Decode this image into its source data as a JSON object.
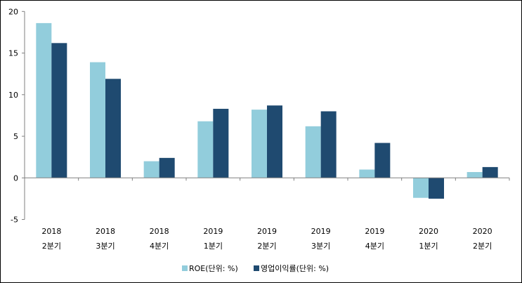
{
  "chart_data": {
    "type": "bar",
    "title": "",
    "xlabel": "",
    "ylabel": "",
    "ylim": [
      -5,
      20
    ],
    "yticks": [
      -5,
      0,
      5,
      10,
      15,
      20
    ],
    "grid": false,
    "legend_position": "bottom",
    "categories": [
      [
        "2018",
        "2분기"
      ],
      [
        "2018",
        "3분기"
      ],
      [
        "2018",
        "4분기"
      ],
      [
        "2019",
        "1분기"
      ],
      [
        "2019",
        "2분기"
      ],
      [
        "2019",
        "3분기"
      ],
      [
        "2019",
        "4분기"
      ],
      [
        "2020",
        "1분기"
      ],
      [
        "2020",
        "2분기"
      ]
    ],
    "series": [
      {
        "name": "ROE(단위: %)",
        "color": "#92CDDC",
        "values": [
          18.6,
          13.9,
          2.0,
          6.8,
          8.2,
          6.2,
          1.0,
          -2.4,
          0.7
        ]
      },
      {
        "name": "영업이익률(단위: %)",
        "color": "#1F4A70",
        "values": [
          16.2,
          11.9,
          2.4,
          8.3,
          8.7,
          8.0,
          4.2,
          -2.5,
          1.3
        ]
      }
    ]
  }
}
